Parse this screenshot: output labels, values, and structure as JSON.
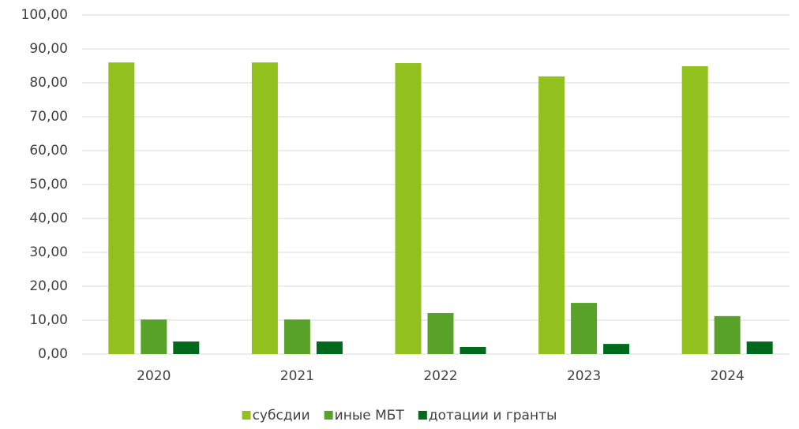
{
  "chart_data": {
    "type": "bar",
    "categories": [
      "2020",
      "2021",
      "2022",
      "2023",
      "2024"
    ],
    "series": [
      {
        "name": "субсдии",
        "color": "#92c01f",
        "values": [
          86.0,
          86.0,
          85.8,
          81.9,
          84.9
        ]
      },
      {
        "name": "иные МБТ",
        "color": "#58a22a",
        "values": [
          10.2,
          10.2,
          12.1,
          15.1,
          11.2
        ]
      },
      {
        "name": "дотации и гранты",
        "color": "#006a1c",
        "values": [
          3.7,
          3.7,
          2.1,
          3.0,
          3.7
        ]
      }
    ],
    "ylim": [
      0,
      100
    ],
    "yticks": [
      {
        "value": 0,
        "label": "0,00"
      },
      {
        "value": 10,
        "label": "10,00"
      },
      {
        "value": 20,
        "label": "20,00"
      },
      {
        "value": 30,
        "label": "30,00"
      },
      {
        "value": 40,
        "label": "40,00"
      },
      {
        "value": 50,
        "label": "50,00"
      },
      {
        "value": 60,
        "label": "60,00"
      },
      {
        "value": 70,
        "label": "70,00"
      },
      {
        "value": 80,
        "label": "80,00"
      },
      {
        "value": 90,
        "label": "90,00"
      },
      {
        "value": 100,
        "label": "100,00"
      }
    ],
    "grid": true,
    "legend": "bottom"
  }
}
